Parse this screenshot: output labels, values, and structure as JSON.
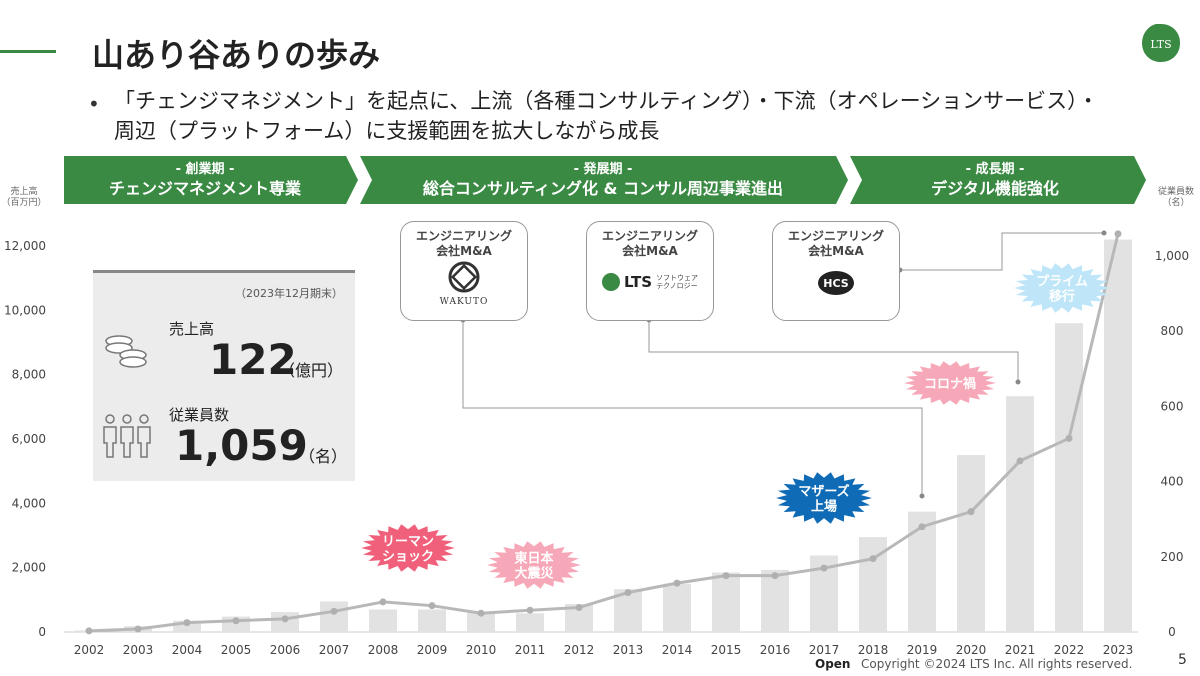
{
  "page": {
    "title": "山あり谷ありの歩み",
    "bullet": "「チェンジマネジメント」を起点に、上流（各種コンサルティング）・下流（オペレーションサービス）・周辺（プラットフォーム）に支援範囲を拡大しながら成長",
    "logo_text": "LTS",
    "footer_open": "Open",
    "footer_copyright": "Copyright ©2024 LTS Inc. All rights reserved.",
    "page_number": "5"
  },
  "phases": [
    {
      "sub": "- 創業期 -",
      "title": "チェンジマネジメント専業"
    },
    {
      "sub": "- 発展期 -",
      "title": "総合コンサルティング化 & コンサル周辺事業進出"
    },
    {
      "sub": "- 成長期 -",
      "title": "デジタル機能強化"
    }
  ],
  "kpi": {
    "note": "（2023年12月期末）",
    "sales_label": "売上高",
    "sales_value": "122",
    "sales_unit": "（億円）",
    "emp_label": "従業員数",
    "emp_value": "1,059",
    "emp_unit": "（名）"
  },
  "acquisitions": [
    {
      "title": "エンジニアリング\n会社M&A",
      "logo_text": "WAKUTO"
    },
    {
      "title": "エンジニアリング\n会社M&A",
      "logo_text": "LTS",
      "logo_sub": "ソフトウェア\nテクノロジー"
    },
    {
      "title": "エンジニアリング\n会社M&A",
      "logo_text": "HCS"
    }
  ],
  "events": [
    {
      "label": "リーマン\nショック",
      "color": "#f0607a",
      "text_color": "#ffffff"
    },
    {
      "label": "東日本\n大震災",
      "color": "#f7a8b8",
      "text_color": "#ffffff"
    },
    {
      "label": "マザーズ\n上場",
      "color": "#0f6bb5",
      "text_color": "#ffffff"
    },
    {
      "label": "コロナ禍",
      "color": "#f7a8b8",
      "text_color": "#ffffff"
    },
    {
      "label": "プライム\n移行",
      "color": "#bfe6f8",
      "text_color": "#ffffff"
    }
  ],
  "colors": {
    "green": "#3a8a44",
    "bar": "#e2e2e2",
    "line": "#b8b8b8"
  },
  "chart_data": {
    "type": "bar",
    "categories": [
      "2002",
      "2003",
      "2004",
      "2005",
      "2006",
      "2007",
      "2008",
      "2009",
      "2010",
      "2011",
      "2012",
      "2013",
      "2014",
      "2015",
      "2016",
      "2017",
      "2018",
      "2019",
      "2020",
      "2021",
      "2022",
      "2023"
    ],
    "ylabel": "売上高\n（百万円）",
    "y2label": "従業員数\n（名）",
    "ylim": [
      0,
      12000
    ],
    "yticks": [
      "0",
      "2,000",
      "4,000",
      "6,000",
      "8,000",
      "10,000",
      "12,000"
    ],
    "y2lim": [
      0,
      1000
    ],
    "y2ticks": [
      "0",
      "200",
      "400",
      "600",
      "800",
      "1,000"
    ],
    "series": [
      {
        "values": [
          50,
          180,
          350,
          480,
          620,
          950,
          700,
          700,
          600,
          580,
          870,
          1330,
          1500,
          1850,
          1930,
          2380,
          2950,
          3740,
          5500,
          7330,
          9600,
          12200
        ]
      },
      {
        "values": [
          3,
          8,
          25,
          30,
          35,
          55,
          80,
          70,
          50,
          58,
          65,
          105,
          130,
          150,
          150,
          170,
          195,
          280,
          320,
          455,
          515,
          1059
        ]
      }
    ]
  }
}
